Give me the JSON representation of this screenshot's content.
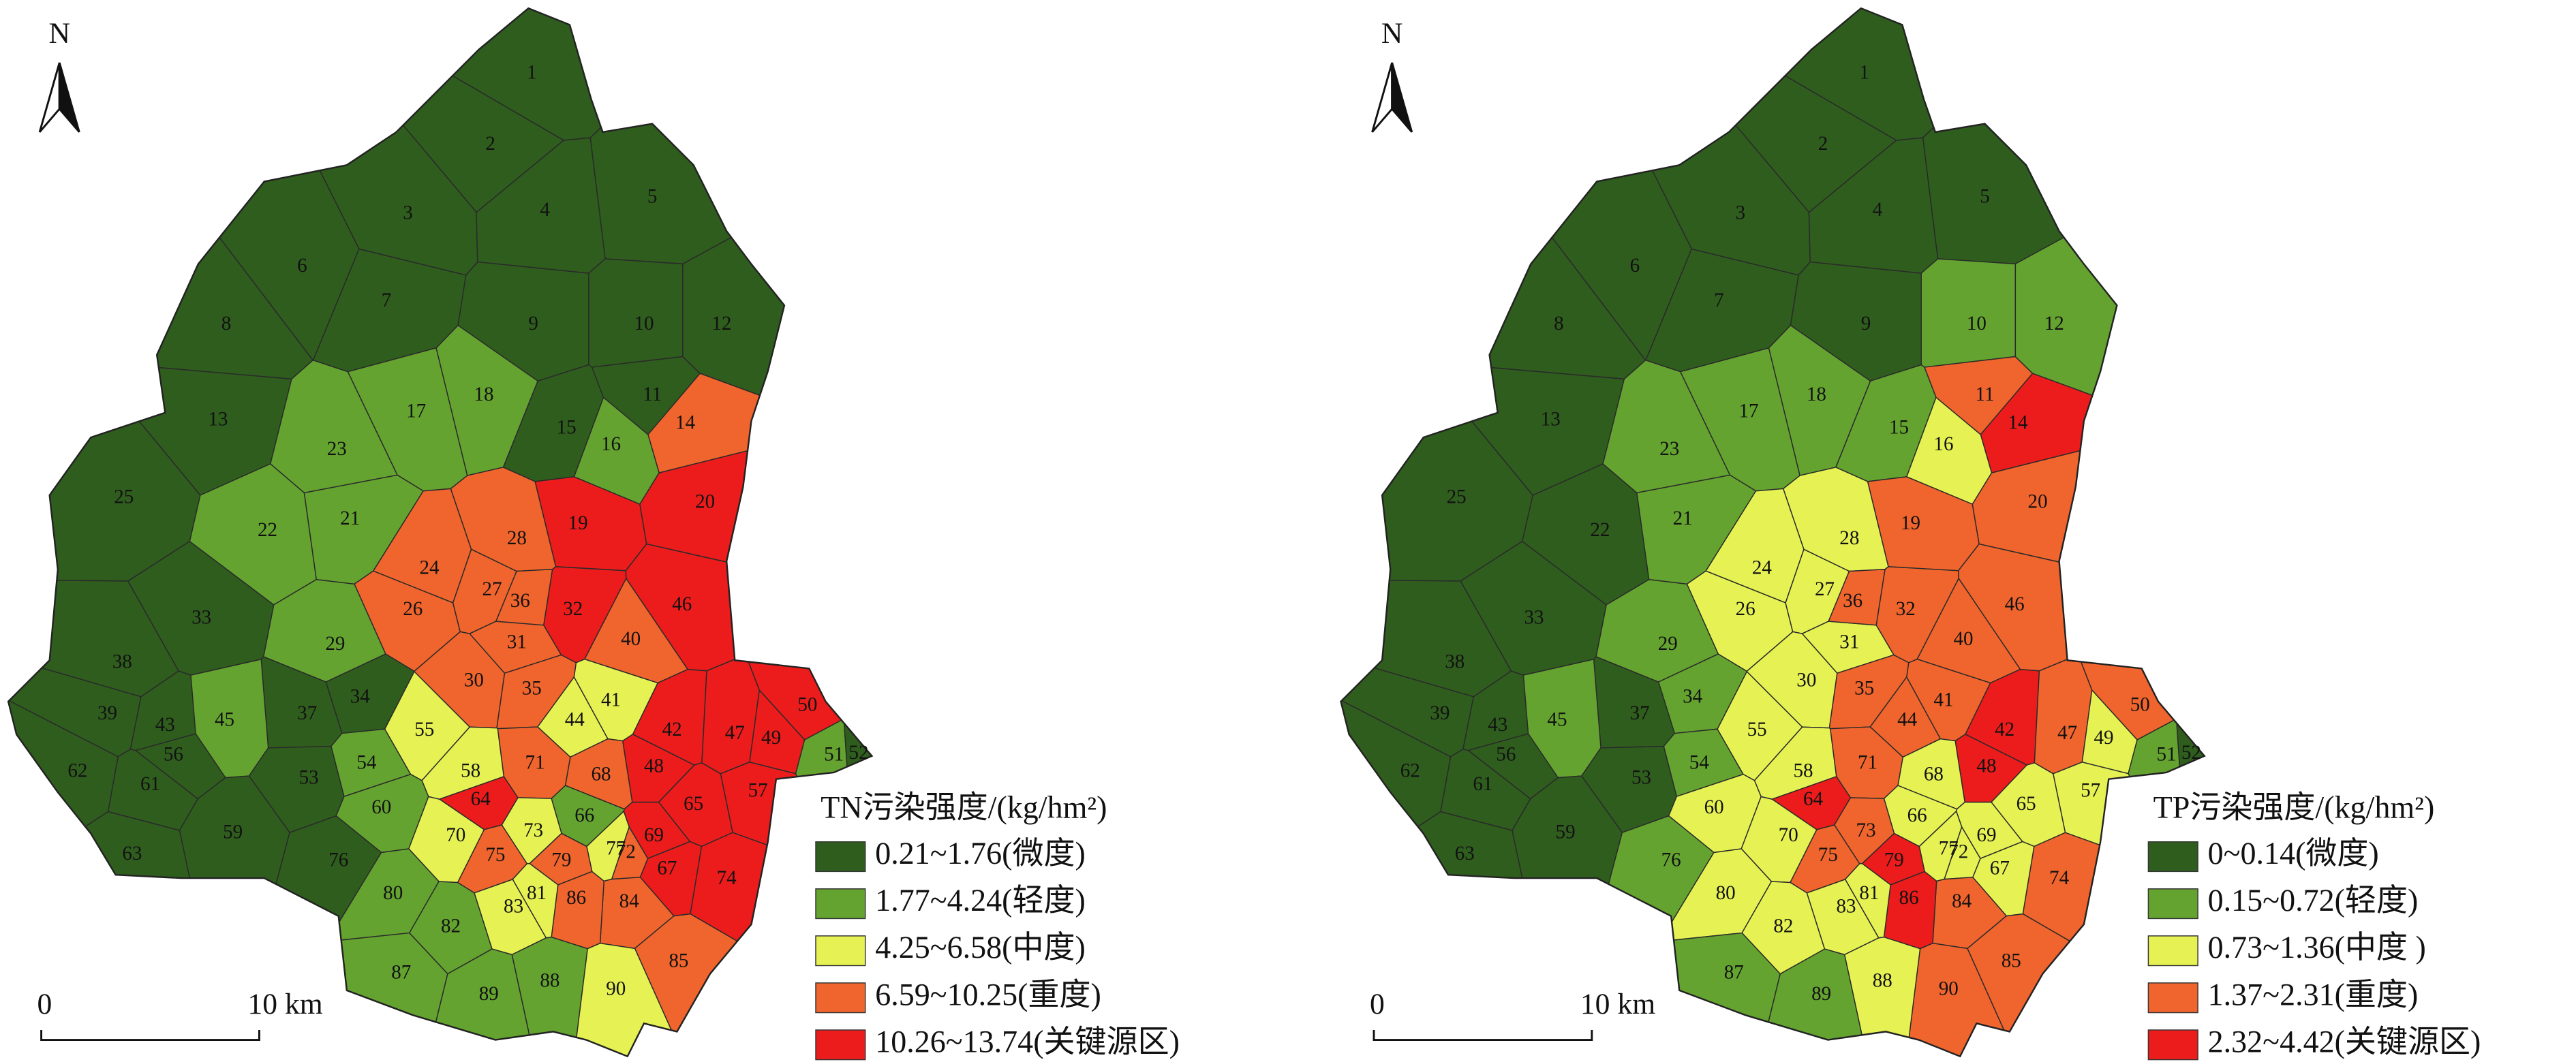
{
  "maps": [
    {
      "north": "N",
      "legend_title": "TN污染强度/(kg/hm²)",
      "legend": [
        {
          "label": "0.21~1.76(微度)",
          "color": "#2f5d1e"
        },
        {
          "label": "1.77~4.24(轻度)",
          "color": "#64a330"
        },
        {
          "label": "4.25~6.58(中度)",
          "color": "#e6f254"
        },
        {
          "label": "6.59~10.25(重度)",
          "color": "#f0652d"
        },
        {
          "label": "10.26~13.74(关键源区)",
          "color": "#ec1c1c"
        }
      ],
      "scale_labels": [
        "0",
        "10 km"
      ],
      "subbasins": [
        {
          "label": "1",
          "class": 0
        },
        {
          "label": "2",
          "class": 0
        },
        {
          "label": "3",
          "class": 0
        },
        {
          "label": "4",
          "class": 0
        },
        {
          "label": "5",
          "class": 0
        },
        {
          "label": "6",
          "class": 0
        },
        {
          "label": "7",
          "class": 0
        },
        {
          "label": "8",
          "class": 0
        },
        {
          "label": "9",
          "class": 0
        },
        {
          "label": "10",
          "class": 0
        },
        {
          "label": "11",
          "class": 0
        },
        {
          "label": "12",
          "class": 0
        },
        {
          "label": "13",
          "class": 0
        },
        {
          "label": "14",
          "class": 3
        },
        {
          "label": "15",
          "class": 0
        },
        {
          "label": "16",
          "class": 1
        },
        {
          "label": "17",
          "class": 1
        },
        {
          "label": "18",
          "class": 1
        },
        {
          "label": "19",
          "class": 4
        },
        {
          "label": "20",
          "class": 4
        },
        {
          "label": "21",
          "class": 1
        },
        {
          "label": "22",
          "class": 1
        },
        {
          "label": "23",
          "class": 1
        },
        {
          "label": "24",
          "class": 3
        },
        {
          "label": "25",
          "class": 0
        },
        {
          "label": "26",
          "class": 3
        },
        {
          "label": "27",
          "class": 3
        },
        {
          "label": "28",
          "class": 3
        },
        {
          "label": "29",
          "class": 1
        },
        {
          "label": "30",
          "class": 3
        },
        {
          "label": "31",
          "class": 3
        },
        {
          "label": "32",
          "class": 4
        },
        {
          "label": "33",
          "class": 0
        },
        {
          "label": "34",
          "class": 0
        },
        {
          "label": "35",
          "class": 3
        },
        {
          "label": "36",
          "class": 3
        },
        {
          "label": "37",
          "class": 0
        },
        {
          "label": "38",
          "class": 0
        },
        {
          "label": "39",
          "class": 0
        },
        {
          "label": "40",
          "class": 3
        },
        {
          "label": "41",
          "class": 2
        },
        {
          "label": "42",
          "class": 4
        },
        {
          "label": "43",
          "class": 0
        },
        {
          "label": "44",
          "class": 2
        },
        {
          "label": "45",
          "class": 1
        },
        {
          "label": "46",
          "class": 4
        },
        {
          "label": "47",
          "class": 4
        },
        {
          "label": "48",
          "class": 4
        },
        {
          "label": "49",
          "class": 4
        },
        {
          "label": "50",
          "class": 4
        },
        {
          "label": "51",
          "class": 1
        },
        {
          "label": "52",
          "class": 0
        },
        {
          "label": "53",
          "class": 0
        },
        {
          "label": "54",
          "class": 1
        },
        {
          "label": "55",
          "class": 2
        },
        {
          "label": "56",
          "class": 0
        },
        {
          "label": "57",
          "class": 4
        },
        {
          "label": "58",
          "class": 2
        },
        {
          "label": "59",
          "class": 0
        },
        {
          "label": "60",
          "class": 1
        },
        {
          "label": "61",
          "class": 0
        },
        {
          "label": "62",
          "class": 0
        },
        {
          "label": "63",
          "class": 0
        },
        {
          "label": "64",
          "class": 4
        },
        {
          "label": "65",
          "class": 4
        },
        {
          "label": "66",
          "class": 1
        },
        {
          "label": "67",
          "class": 4
        },
        {
          "label": "68",
          "class": 3
        },
        {
          "label": "69",
          "class": 4
        },
        {
          "label": "70",
          "class": 2
        },
        {
          "label": "71",
          "class": 3
        },
        {
          "label": "72",
          "class": 3
        },
        {
          "label": "73",
          "class": 2
        },
        {
          "label": "74",
          "class": 4
        },
        {
          "label": "75",
          "class": 3
        },
        {
          "label": "76",
          "class": 0
        },
        {
          "label": "77",
          "class": 2
        },
        {
          "label": "79",
          "class": 3
        },
        {
          "label": "80",
          "class": 1
        },
        {
          "label": "81",
          "class": 2
        },
        {
          "label": "82",
          "class": 1
        },
        {
          "label": "83",
          "class": 2
        },
        {
          "label": "84",
          "class": 3
        },
        {
          "label": "85",
          "class": 3
        },
        {
          "label": "86",
          "class": 3
        },
        {
          "label": "87",
          "class": 1
        },
        {
          "label": "88",
          "class": 1
        },
        {
          "label": "89",
          "class": 1
        },
        {
          "label": "90",
          "class": 2
        }
      ]
    },
    {
      "north": "N",
      "legend_title": "TP污染强度/(kg/hm²)",
      "legend": [
        {
          "label": "0~0.14(微度)",
          "color": "#2f5d1e"
        },
        {
          "label": "0.15~0.72(轻度)",
          "color": "#64a330"
        },
        {
          "label": "0.73~1.36(中度 )",
          "color": "#e6f254"
        },
        {
          "label": "1.37~2.31(重度)",
          "color": "#f0652d"
        },
        {
          "label": "2.32~4.42(关键源区)",
          "color": "#ec1c1c"
        }
      ],
      "scale_labels": [
        "0",
        "10 km"
      ],
      "subbasins": [
        {
          "label": "1",
          "class": 0
        },
        {
          "label": "2",
          "class": 0
        },
        {
          "label": "3",
          "class": 0
        },
        {
          "label": "4",
          "class": 0
        },
        {
          "label": "5",
          "class": 0
        },
        {
          "label": "6",
          "class": 0
        },
        {
          "label": "7",
          "class": 0
        },
        {
          "label": "8",
          "class": 0
        },
        {
          "label": "9",
          "class": 0
        },
        {
          "label": "10",
          "class": 1
        },
        {
          "label": "11",
          "class": 3
        },
        {
          "label": "12",
          "class": 1
        },
        {
          "label": "13",
          "class": 0
        },
        {
          "label": "14",
          "class": 4
        },
        {
          "label": "15",
          "class": 1
        },
        {
          "label": "16",
          "class": 2
        },
        {
          "label": "17",
          "class": 1
        },
        {
          "label": "18",
          "class": 1
        },
        {
          "label": "19",
          "class": 3
        },
        {
          "label": "20",
          "class": 3
        },
        {
          "label": "21",
          "class": 1
        },
        {
          "label": "22",
          "class": 0
        },
        {
          "label": "23",
          "class": 1
        },
        {
          "label": "24",
          "class": 2
        },
        {
          "label": "25",
          "class": 0
        },
        {
          "label": "26",
          "class": 2
        },
        {
          "label": "27",
          "class": 2
        },
        {
          "label": "28",
          "class": 2
        },
        {
          "label": "29",
          "class": 1
        },
        {
          "label": "30",
          "class": 2
        },
        {
          "label": "31",
          "class": 2
        },
        {
          "label": "32",
          "class": 3
        },
        {
          "label": "33",
          "class": 0
        },
        {
          "label": "34",
          "class": 1
        },
        {
          "label": "35",
          "class": 3
        },
        {
          "label": "36",
          "class": 3
        },
        {
          "label": "37",
          "class": 0
        },
        {
          "label": "38",
          "class": 0
        },
        {
          "label": "39",
          "class": 0
        },
        {
          "label": "40",
          "class": 3
        },
        {
          "label": "41",
          "class": 3
        },
        {
          "label": "42",
          "class": 4
        },
        {
          "label": "43",
          "class": 0
        },
        {
          "label": "44",
          "class": 3
        },
        {
          "label": "45",
          "class": 1
        },
        {
          "label": "46",
          "class": 3
        },
        {
          "label": "47",
          "class": 3
        },
        {
          "label": "48",
          "class": 4
        },
        {
          "label": "49",
          "class": 2
        },
        {
          "label": "50",
          "class": 3
        },
        {
          "label": "51",
          "class": 1
        },
        {
          "label": "52",
          "class": 0
        },
        {
          "label": "53",
          "class": 0
        },
        {
          "label": "54",
          "class": 1
        },
        {
          "label": "55",
          "class": 2
        },
        {
          "label": "56",
          "class": 0
        },
        {
          "label": "57",
          "class": 2
        },
        {
          "label": "58",
          "class": 2
        },
        {
          "label": "59",
          "class": 0
        },
        {
          "label": "60",
          "class": 2
        },
        {
          "label": "61",
          "class": 0
        },
        {
          "label": "62",
          "class": 0
        },
        {
          "label": "63",
          "class": 0
        },
        {
          "label": "64",
          "class": 4
        },
        {
          "label": "65",
          "class": 2
        },
        {
          "label": "66",
          "class": 2
        },
        {
          "label": "67",
          "class": 2
        },
        {
          "label": "68",
          "class": 2
        },
        {
          "label": "69",
          "class": 2
        },
        {
          "label": "70",
          "class": 2
        },
        {
          "label": "71",
          "class": 3
        },
        {
          "label": "72",
          "class": 2
        },
        {
          "label": "73",
          "class": 3
        },
        {
          "label": "74",
          "class": 3
        },
        {
          "label": "75",
          "class": 3
        },
        {
          "label": "76",
          "class": 1
        },
        {
          "label": "77",
          "class": 2
        },
        {
          "label": "79",
          "class": 4
        },
        {
          "label": "80",
          "class": 2
        },
        {
          "label": "81",
          "class": 2
        },
        {
          "label": "82",
          "class": 2
        },
        {
          "label": "83",
          "class": 2
        },
        {
          "label": "84",
          "class": 3
        },
        {
          "label": "85",
          "class": 3
        },
        {
          "label": "86",
          "class": 4
        },
        {
          "label": "87",
          "class": 1
        },
        {
          "label": "88",
          "class": 2
        },
        {
          "label": "89",
          "class": 1
        },
        {
          "label": "90",
          "class": 3
        }
      ]
    }
  ]
}
